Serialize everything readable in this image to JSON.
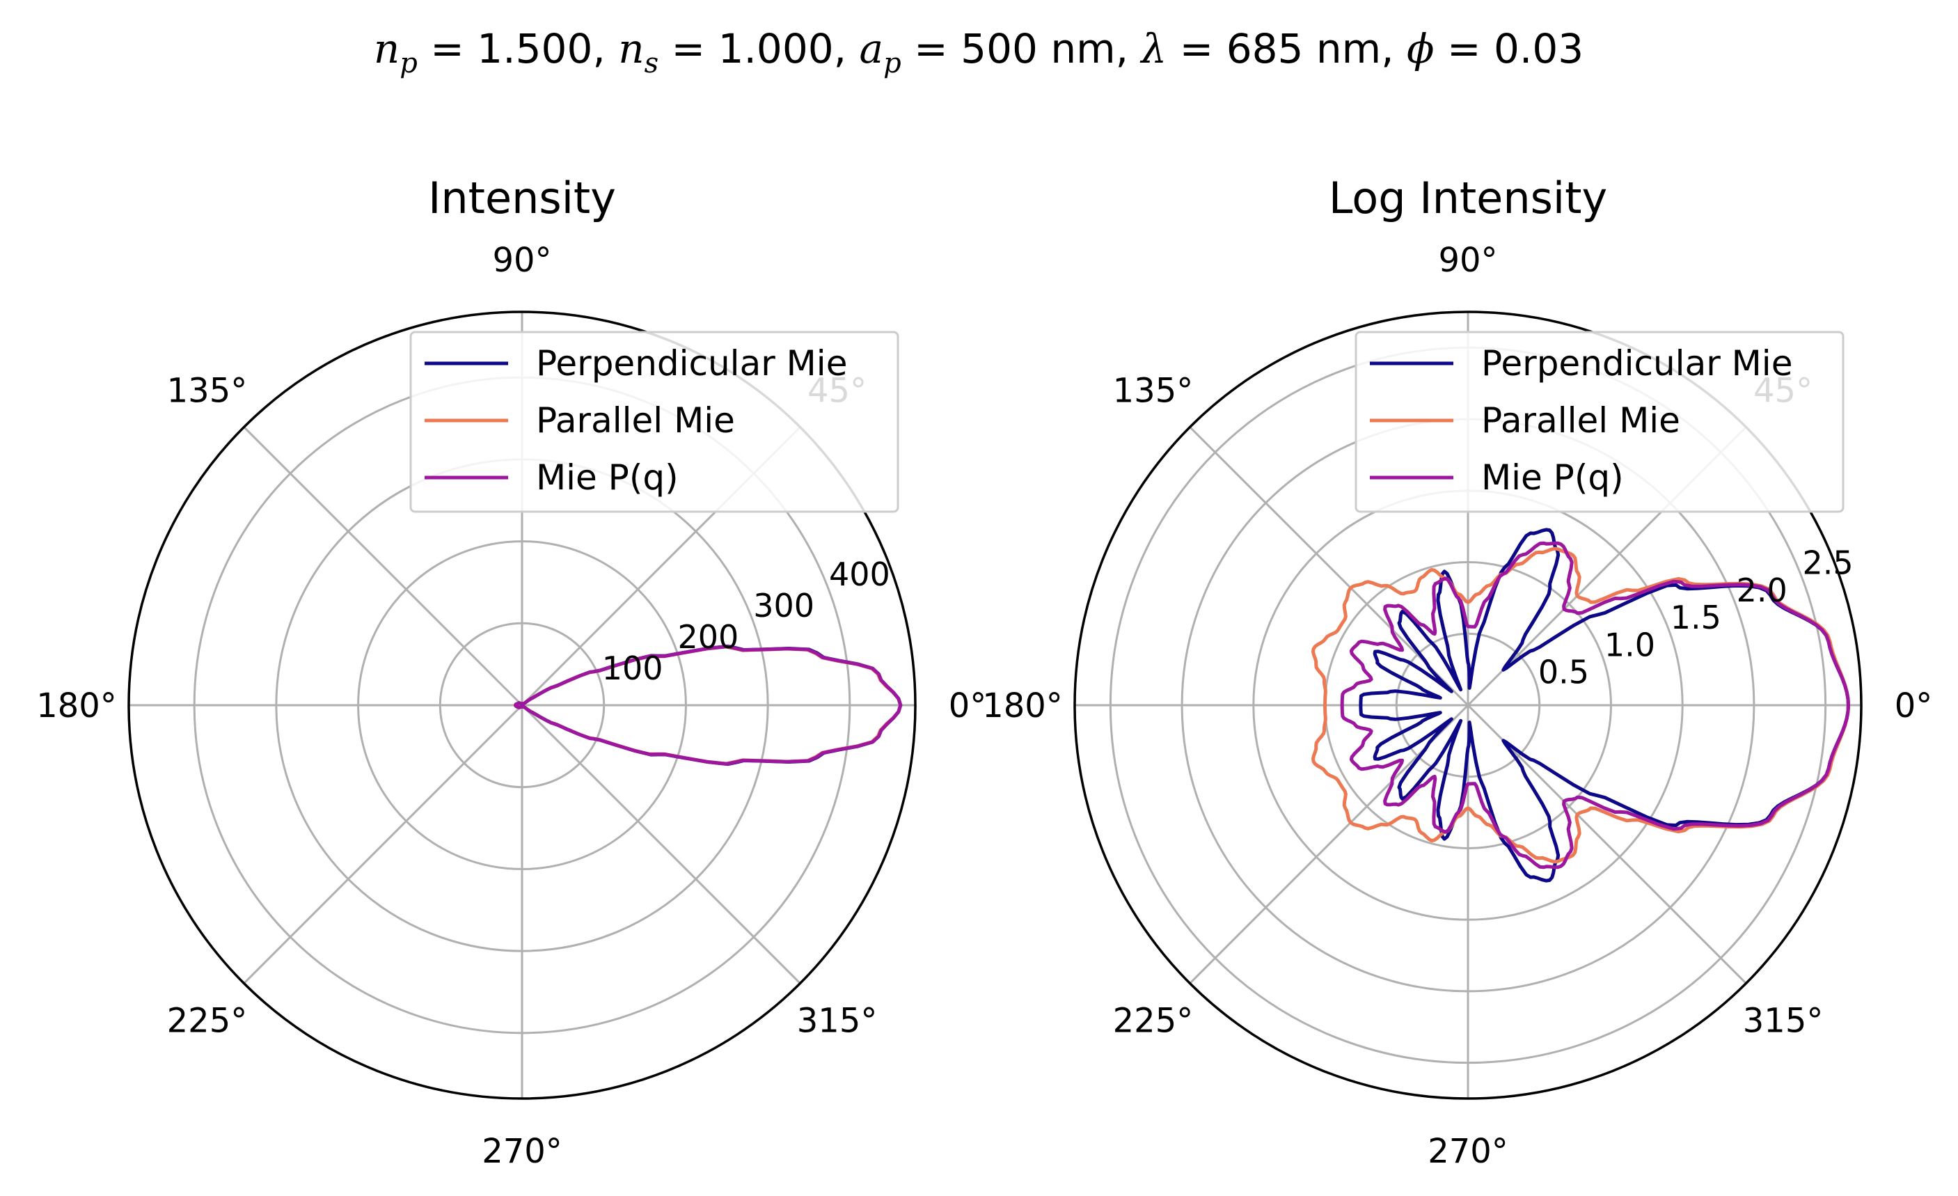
{
  "figure": {
    "suptitle": {
      "np_sym": "n",
      "np_sub": "p",
      "np_val": " = 1.500, ",
      "ns_sym": "n",
      "ns_sub": "s",
      "ns_val": " = 1.000, ",
      "ap_sym": "a",
      "ap_sub": "p",
      "ap_val": " = 500 nm, ",
      "lam_sym": "λ",
      "lam_val": " = 685 nm, ",
      "phi_sym": "ϕ",
      "phi_val": " = 0.03"
    }
  },
  "colors": {
    "perpendicular": "#0d0887",
    "parallel": "#ed7953",
    "mie_pq": "#9c179e",
    "grid": "#b0b0b0",
    "spine": "#000000"
  },
  "chart_data": [
    {
      "type": "line",
      "projection": "polar",
      "title": "Intensity",
      "theta_labels": [
        "0°",
        "45°",
        "90°",
        "135°",
        "180°",
        "225°",
        "270°",
        "315°"
      ],
      "r_ticks": [
        100,
        200,
        300,
        400
      ],
      "r_tick_labels": [
        "100",
        "200",
        "300",
        "400"
      ],
      "rlim": [
        0,
        480
      ],
      "grid": true,
      "legend_position": "upper right",
      "series": [
        {
          "name": "Perpendicular Mie",
          "color": "#0d0887",
          "theta_deg": [
            0,
            5,
            10,
            15,
            20,
            25,
            30,
            35,
            40,
            50,
            60,
            70,
            90,
            120,
            150,
            180
          ],
          "r": [
            462,
            437,
            366,
            270,
            176,
            97,
            45,
            15,
            4,
            1,
            1,
            1,
            2,
            2,
            5,
            8
          ]
        },
        {
          "name": "Parallel Mie",
          "color": "#ed7953",
          "theta_deg": [
            0,
            5,
            10,
            15,
            20,
            25,
            30,
            35,
            40,
            50,
            60,
            70,
            90,
            120,
            150,
            180
          ],
          "r": [
            462,
            436,
            364,
            268,
            174,
            96,
            44,
            15,
            4,
            1,
            1,
            1,
            2,
            2,
            5,
            8
          ]
        },
        {
          "name": "Mie P(q)",
          "color": "#9c179e",
          "theta_deg": [
            0,
            5,
            10,
            15,
            20,
            25,
            30,
            35,
            40,
            50,
            60,
            70,
            90,
            120,
            150,
            180
          ],
          "r": [
            462,
            437,
            365,
            269,
            175,
            97,
            45,
            15,
            4,
            1,
            1,
            1,
            2,
            2,
            5,
            8
          ]
        }
      ]
    },
    {
      "type": "line",
      "projection": "polar",
      "title": "Log Intensity",
      "theta_labels": [
        "0°",
        "45°",
        "90°",
        "135°",
        "180°",
        "225°",
        "270°",
        "315°"
      ],
      "r_ticks": [
        0.5,
        1.0,
        1.5,
        2.0,
        2.5
      ],
      "r_tick_labels": [
        "0.5",
        "1.0",
        "1.5",
        "2.0",
        "2.5"
      ],
      "rlim": [
        0,
        2.75
      ],
      "grid": true,
      "legend_position": "upper right",
      "series": [
        {
          "name": "Perpendicular Mie",
          "color": "#0d0887",
          "theta_deg": [
            0,
            10,
            20,
            30,
            35,
            40,
            45,
            50,
            55,
            60,
            65,
            70,
            75,
            80,
            85,
            90,
            95,
            100,
            105,
            110,
            115,
            120,
            125,
            130,
            135,
            140,
            145,
            150,
            155,
            160,
            165,
            170,
            175,
            180
          ],
          "r": [
            2.66,
            2.56,
            2.25,
            1.68,
            1.1,
            0.6,
            0.35,
            0.6,
            1.0,
            1.25,
            1.35,
            1.28,
            1.0,
            0.55,
            0.12,
            0.3,
            0.75,
            0.95,
            0.8,
            0.4,
            0.12,
            0.5,
            0.8,
            0.75,
            0.4,
            0.15,
            0.55,
            0.75,
            0.7,
            0.35,
            0.2,
            0.55,
            0.75,
            0.75
          ]
        },
        {
          "name": "Parallel Mie",
          "color": "#ed7953",
          "theta_deg": [
            0,
            10,
            20,
            30,
            35,
            40,
            45,
            50,
            55,
            60,
            65,
            70,
            75,
            80,
            85,
            90,
            95,
            100,
            105,
            110,
            115,
            120,
            125,
            130,
            135,
            140,
            145,
            150,
            155,
            160,
            165,
            170,
            175,
            180
          ],
          "r": [
            2.66,
            2.57,
            2.27,
            1.75,
            1.4,
            1.12,
            1.08,
            1.2,
            1.28,
            1.26,
            1.18,
            1.05,
            0.95,
            0.85,
            0.78,
            0.72,
            0.78,
            0.9,
            0.98,
            0.95,
            0.88,
            0.9,
            1.02,
            1.12,
            1.16,
            1.12,
            1.05,
            1.05,
            1.1,
            1.15,
            1.1,
            1.02,
            1.0,
            1.0
          ]
        },
        {
          "name": "Mie P(q)",
          "color": "#9c179e",
          "theta_deg": [
            0,
            10,
            20,
            30,
            35,
            40,
            45,
            50,
            55,
            60,
            65,
            70,
            75,
            80,
            85,
            90,
            95,
            100,
            105,
            110,
            115,
            120,
            125,
            130,
            135,
            140,
            145,
            150,
            155,
            160,
            165,
            170,
            175,
            180
          ],
          "r": [
            2.66,
            2.56,
            2.26,
            1.72,
            1.3,
            1.0,
            0.95,
            1.1,
            1.25,
            1.3,
            1.25,
            1.12,
            0.95,
            0.75,
            0.55,
            0.55,
            0.75,
            0.9,
            0.88,
            0.7,
            0.55,
            0.65,
            0.85,
            0.9,
            0.75,
            0.6,
            0.75,
            0.88,
            0.9,
            0.78,
            0.7,
            0.8,
            0.88,
            0.88
          ]
        }
      ]
    }
  ]
}
